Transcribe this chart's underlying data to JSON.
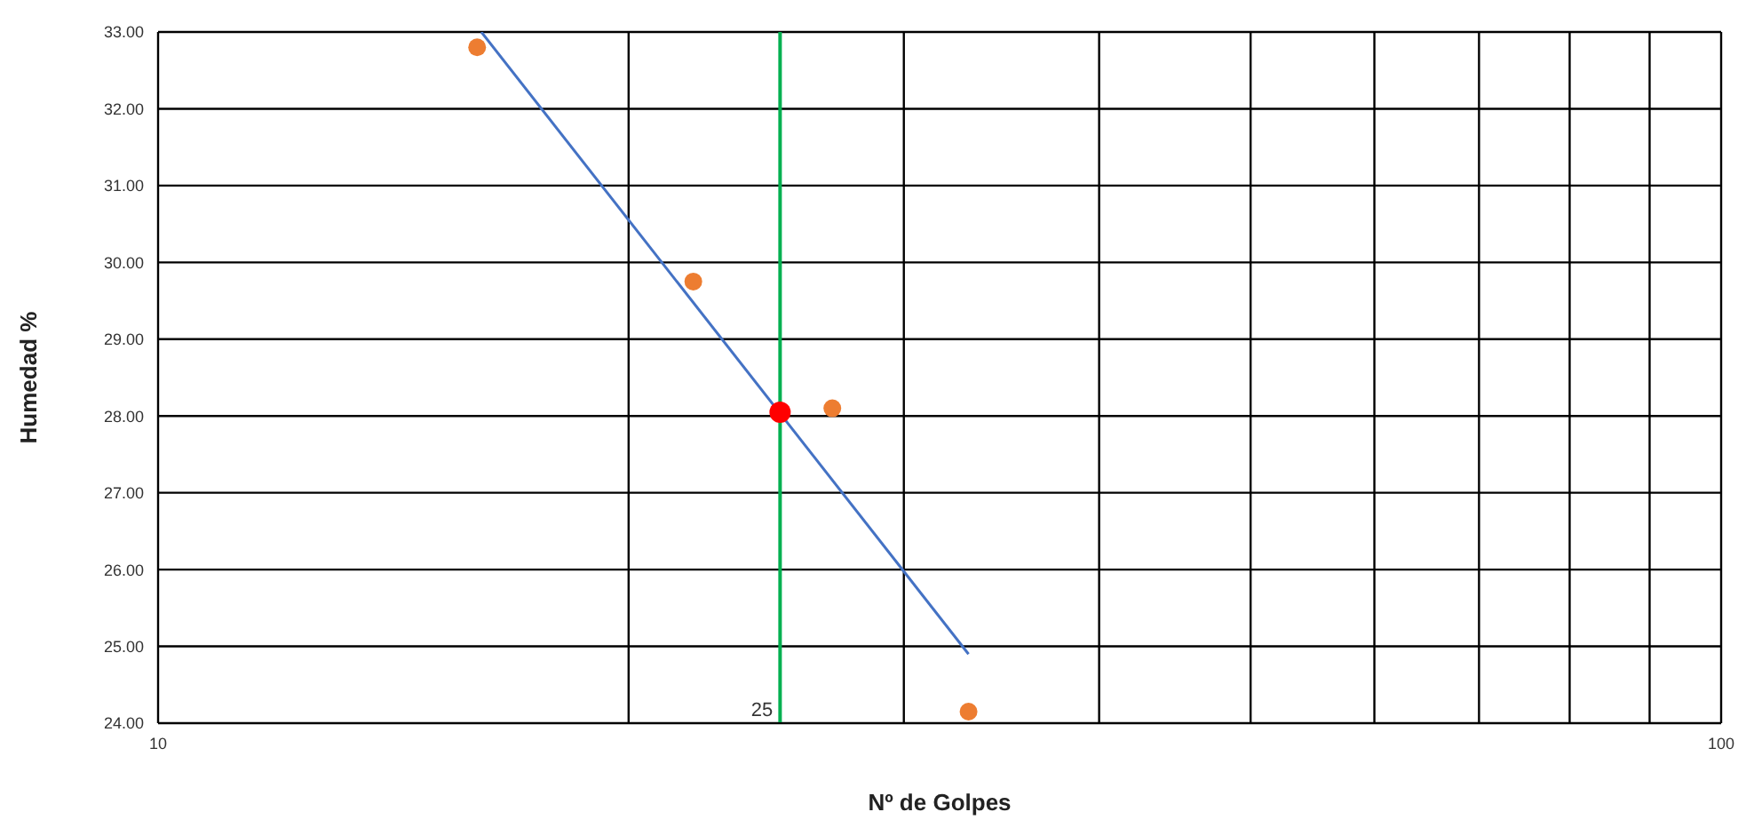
{
  "chart_data": {
    "type": "scatter",
    "xlabel": "Nº de Golpes",
    "ylabel": "Humedad %",
    "log": "x",
    "xlim": [
      10,
      100
    ],
    "xticks": [
      10,
      {
        "value": 20,
        "label": null
      },
      {
        "value": 30,
        "label": null
      },
      {
        "value": 40,
        "label": null
      },
      {
        "value": 50,
        "label": null
      },
      {
        "value": 60,
        "label": null
      },
      {
        "value": 70,
        "label": null
      },
      {
        "value": 80,
        "label": null
      },
      {
        "value": 90,
        "label": null
      },
      100
    ],
    "ylim": [
      24,
      33
    ],
    "yticks": [
      {
        "value": 24,
        "label": "24.00"
      },
      {
        "value": 25,
        "label": "25.00"
      },
      {
        "value": 26,
        "label": "26.00"
      },
      {
        "value": 27,
        "label": "27.00"
      },
      {
        "value": 28,
        "label": "28.00"
      },
      {
        "value": 29,
        "label": "29.00"
      },
      {
        "value": 30,
        "label": "30.00"
      },
      {
        "value": 31,
        "label": "31.00"
      },
      {
        "value": 32,
        "label": "32.00"
      },
      {
        "value": 33,
        "label": "33.00"
      }
    ],
    "grid": true,
    "legend": false,
    "series": [
      {
        "type": "line",
        "color": "#4472c4",
        "marker": "none",
        "x": [
          16.1,
          33
        ],
        "values": [
          33.0,
          24.9
        ]
      },
      {
        "type": "scatter",
        "color": "#ed7d31",
        "marker": "circle",
        "x": [
          16,
          22,
          27,
          33
        ],
        "values": [
          32.8,
          29.75,
          28.1,
          24.15
        ]
      },
      {
        "type": "scatter",
        "color": "#ff0000",
        "marker": "circle",
        "x": [
          25
        ],
        "values": [
          28.05
        ]
      }
    ],
    "ref_lines": [
      {
        "axis": "x",
        "value": 25,
        "label": "25",
        "color": "#00b050"
      }
    ]
  }
}
